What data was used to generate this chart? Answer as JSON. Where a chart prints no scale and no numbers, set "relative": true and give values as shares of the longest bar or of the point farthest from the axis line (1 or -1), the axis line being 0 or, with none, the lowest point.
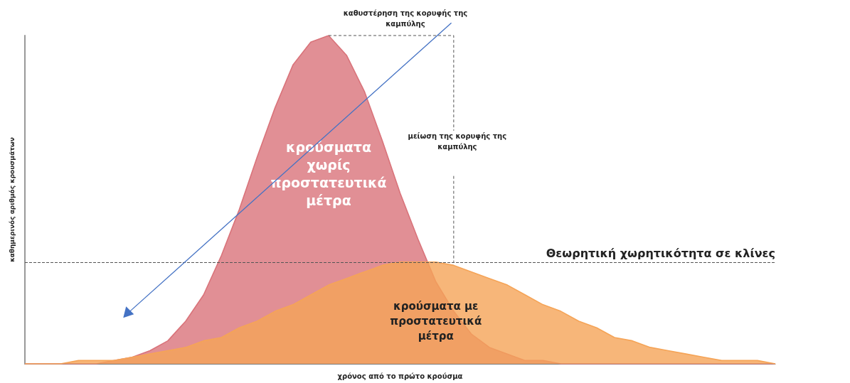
{
  "chart_data": {
    "type": "area",
    "relative": true,
    "xlabel": "χρόνος από το πρώτο κρούσμα",
    "ylabel": "καθημερινός αριθμός κρουσμάτων",
    "categories": [
      null,
      null,
      null,
      null,
      null,
      null,
      null,
      null,
      null,
      null,
      null,
      null,
      null,
      null,
      null,
      null,
      null,
      null,
      null,
      null,
      null,
      null,
      null,
      null,
      null,
      null,
      null,
      null,
      null,
      null,
      null,
      null,
      null,
      null,
      null,
      null,
      null,
      null,
      null,
      null,
      null,
      null,
      null
    ],
    "series": [
      {
        "name": "κρούσματα χωρίς προστατευτικά μέτρα",
        "color": "#d9737a",
        "values": [
          0,
          0,
          0,
          0,
          0,
          0.01,
          0.02,
          0.04,
          0.07,
          0.13,
          0.21,
          0.33,
          0.47,
          0.63,
          0.78,
          0.91,
          0.98,
          1,
          0.94,
          0.83,
          0.68,
          0.52,
          0.38,
          0.25,
          0.16,
          0.09,
          0.05,
          0.03,
          0.01,
          0.01,
          0,
          0,
          0,
          0,
          0,
          0,
          0,
          0,
          0,
          0,
          0,
          0,
          0
        ]
      },
      {
        "name": "κρούσματα με προστατευτικά μέτρα",
        "color": "#f5a457",
        "values": [
          0,
          0,
          0,
          0.01,
          0.01,
          0.01,
          0.02,
          0.03,
          0.04,
          0.05,
          0.07,
          0.08,
          0.11,
          0.13,
          0.16,
          0.18,
          0.21,
          0.24,
          0.26,
          0.28,
          0.3,
          0.31,
          0.31,
          0.31,
          0.3,
          0.28,
          0.26,
          0.24,
          0.21,
          0.18,
          0.16,
          0.13,
          0.11,
          0.08,
          0.07,
          0.05,
          0.04,
          0.03,
          0.02,
          0.01,
          0.01,
          0.01,
          0
        ]
      }
    ],
    "ref_lines": [
      {
        "axis": "y",
        "value": 0.31,
        "label": "Θεωρητική χωρητικότητα σε κλίνες",
        "color": "#555555",
        "line_style": "dashed"
      }
    ],
    "annotations": [
      "καθυστέρηση της κορυφής της καμπύλης",
      "μείωση της κορυφής της καμπύλης"
    ],
    "legend": false,
    "grid": false
  }
}
